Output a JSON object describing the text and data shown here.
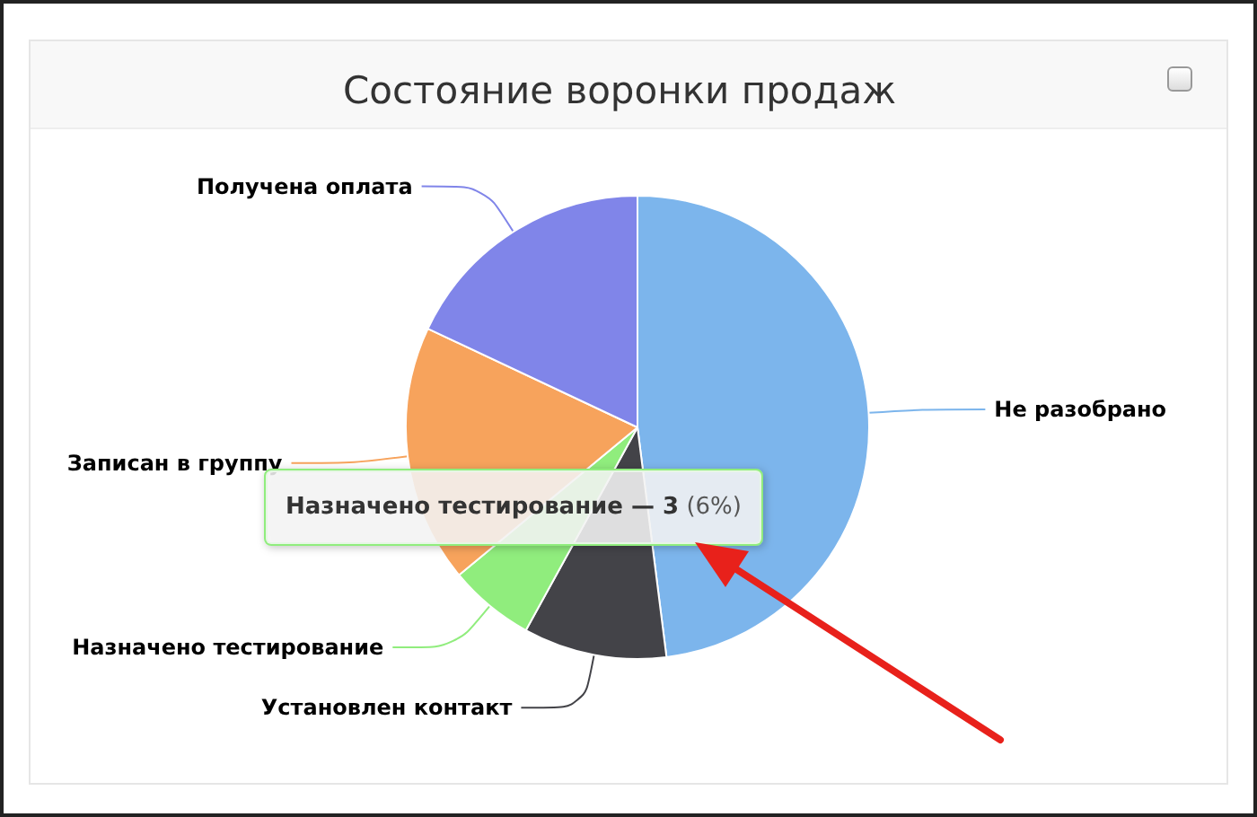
{
  "chart_data": {
    "type": "pie",
    "title": "Состояние воронки продаж",
    "categories": [
      "Не разобрано",
      "Установлен контакт",
      "Назначено тестирование",
      "Записан в группу",
      "Получена оплата"
    ],
    "values": [
      48,
      10,
      6,
      18,
      18
    ],
    "colors": [
      "#7cb5ec",
      "#434348",
      "#90ed7d",
      "#f7a35c",
      "#8085e9"
    ],
    "legend": false,
    "annotations": [
      {
        "text": "Назначено тестирование — 3 (6%)",
        "x": "Назначено тестирование"
      }
    ]
  }
}
